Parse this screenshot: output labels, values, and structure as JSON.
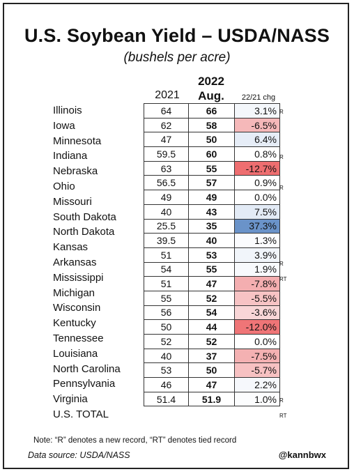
{
  "title": "U.S. Soybean Yield – USDA/NASS",
  "subtitle": "(bushels per acre)",
  "headers": {
    "col2021": "2021",
    "col2022": "2022\nAug.",
    "chg": "22/21 chg"
  },
  "rows": [
    {
      "state": "Illinois",
      "y2021": "64",
      "y2022": "66",
      "chg": "3.1%",
      "mark": "R",
      "color": "#f4f7fb"
    },
    {
      "state": "Iowa",
      "y2021": "62",
      "y2022": "58",
      "chg": "-6.5%",
      "mark": "",
      "color": "#f5b8b9"
    },
    {
      "state": "Minnesota",
      "y2021": "47",
      "y2022": "50",
      "chg": "6.4%",
      "mark": "",
      "color": "#e6edf7"
    },
    {
      "state": "Indiana",
      "y2021": "59.5",
      "y2022": "60",
      "chg": "0.8%",
      "mark": "R",
      "color": "#ffffff"
    },
    {
      "state": "Nebraska",
      "y2021": "63",
      "y2022": "55",
      "chg": "-12.7%",
      "mark": "",
      "color": "#ee6e70"
    },
    {
      "state": "Ohio",
      "y2021": "56.5",
      "y2022": "57",
      "chg": "0.9%",
      "mark": "R",
      "color": "#ffffff"
    },
    {
      "state": "Missouri",
      "y2021": "49",
      "y2022": "49",
      "chg": "0.0%",
      "mark": "",
      "color": "#ffffff"
    },
    {
      "state": "South Dakota",
      "y2021": "40",
      "y2022": "43",
      "chg": "7.5%",
      "mark": "",
      "color": "#e3ebf6"
    },
    {
      "state": "North Dakota",
      "y2021": "25.5",
      "y2022": "35",
      "chg": "37.3%",
      "mark": "",
      "color": "#6a93c9"
    },
    {
      "state": "Kansas",
      "y2021": "39.5",
      "y2022": "40",
      "chg": "1.3%",
      "mark": "",
      "color": "#fbfcfe"
    },
    {
      "state": "Arkansas",
      "y2021": "51",
      "y2022": "53",
      "chg": "3.9%",
      "mark": "R",
      "color": "#f1f5fa"
    },
    {
      "state": "Mississippi",
      "y2021": "54",
      "y2022": "55",
      "chg": "1.9%",
      "mark": "RT",
      "color": "#f8fafd"
    },
    {
      "state": "Michigan",
      "y2021": "51",
      "y2022": "47",
      "chg": "-7.8%",
      "mark": "",
      "color": "#f4aeb0"
    },
    {
      "state": "Wisconsin",
      "y2021": "55",
      "y2022": "52",
      "chg": "-5.5%",
      "mark": "",
      "color": "#f7c3c4"
    },
    {
      "state": "Kentucky",
      "y2021": "56",
      "y2022": "54",
      "chg": "-3.6%",
      "mark": "",
      "color": "#f9d6d7"
    },
    {
      "state": "Tennessee",
      "y2021": "50",
      "y2022": "44",
      "chg": "-12.0%",
      "mark": "",
      "color": "#ef7577"
    },
    {
      "state": "Louisiana",
      "y2021": "52",
      "y2022": "52",
      "chg": "0.0%",
      "mark": "",
      "color": "#ffffff"
    },
    {
      "state": "North Carolina",
      "y2021": "40",
      "y2022": "37",
      "chg": "-7.5%",
      "mark": "",
      "color": "#f4b1b2"
    },
    {
      "state": "Pennsylvania",
      "y2021": "53",
      "y2022": "50",
      "chg": "-5.7%",
      "mark": "",
      "color": "#f7c1c2"
    },
    {
      "state": "Virginia",
      "y2021": "46",
      "y2022": "47",
      "chg": "2.2%",
      "mark": "R",
      "color": "#f6f8fc"
    },
    {
      "state": "U.S. TOTAL",
      "y2021": "51.4",
      "y2022": "51.9",
      "chg": "1.0%",
      "mark": "RT",
      "color": "#fcfdfe"
    }
  ],
  "footer": {
    "note": "Note: “R” denotes a new record, “RT” denotes tied record",
    "source": "Data source: USDA/NASS",
    "handle": "@kannbwx"
  }
}
